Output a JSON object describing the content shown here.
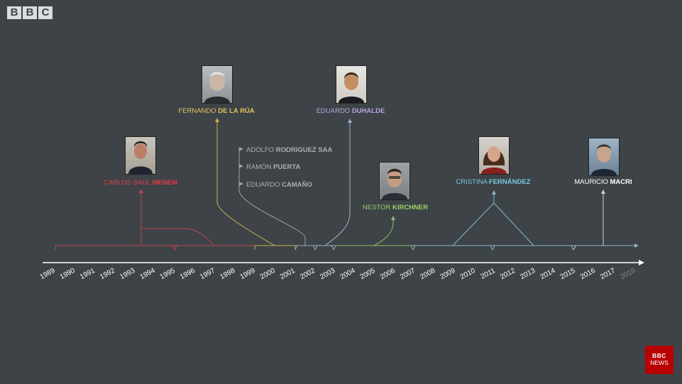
{
  "brand": {
    "logo_letters": [
      "B",
      "B",
      "C"
    ],
    "news_badge": [
      "BBC",
      "NEWS"
    ]
  },
  "timeline": {
    "years": [
      "1989",
      "1990",
      "1991",
      "1992",
      "1993",
      "1994",
      "1995",
      "1996",
      "1997",
      "1998",
      "1999",
      "2000",
      "2001",
      "2002",
      "2003",
      "2004",
      "2005",
      "2006",
      "2007",
      "2008",
      "2009",
      "2010",
      "2011",
      "2012",
      "2013",
      "2014",
      "2015",
      "2016",
      "2017",
      "2018"
    ]
  },
  "presidents": [
    {
      "id": "menem",
      "first": "CARLOS SAÚL ",
      "last": "MENEM",
      "color": "#e23a47",
      "photo_tone": "#7a5a48"
    },
    {
      "id": "delarua",
      "first": "FERNANDO ",
      "last": "DE LA RÚA",
      "color": "#e7c25b",
      "photo_tone": "#8a8a88"
    },
    {
      "id": "duhalde",
      "first": "EDUARDO ",
      "last": "DUHALDE",
      "color": "#b9a6dd",
      "photo_tone": "#7b5a3a"
    },
    {
      "id": "kirchner",
      "first": "NESTOR ",
      "last": "KIRCHNER",
      "color": "#9bd36a",
      "photo_tone": "#6f6a5e"
    },
    {
      "id": "fernandez",
      "first": "CRISTINA ",
      "last": "FERNÁNDEZ",
      "color": "#7cc7df",
      "photo_tone": "#a3664f"
    },
    {
      "id": "macri",
      "first": "MAURICIO ",
      "last": "MACRI",
      "color": "#ffffff",
      "photo_tone": "#6a7782"
    }
  ],
  "interim": [
    {
      "first": "ADOLFO ",
      "last": "RODRIGUEZ SAA"
    },
    {
      "first": "RAMÓN ",
      "last": "PUERTA"
    },
    {
      "first": "EDUARDO ",
      "last": "CAMAÑO"
    }
  ]
}
